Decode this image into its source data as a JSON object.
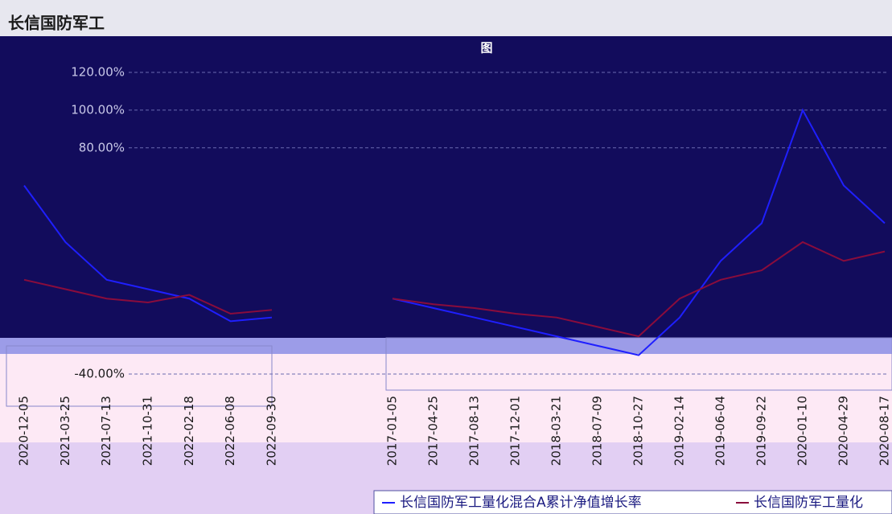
{
  "charts": [
    {
      "type": "line",
      "title": "长信国防军工",
      "subtitle": "图",
      "categories": [
        "2017-01-05",
        "2017-04-25",
        "2017-08-13",
        "2017-12-01",
        "2018-03-21",
        "2018-07-09",
        "2018-10-27",
        "2019-02-14",
        "2019-06-04",
        "2019-09-22",
        "2020-01-10",
        "2020-04-29",
        "2020-08-17"
      ],
      "ylim": [
        -40,
        120
      ],
      "yticks": [
        {
          "value": 120,
          "label": "120.00%"
        },
        {
          "value": 100,
          "label": "100.00%"
        },
        {
          "value": 80,
          "label": "80.00%"
        },
        {
          "value": -40,
          "label": "-40.00%"
        }
      ],
      "grid": true,
      "series": [
        {
          "name": "长信国防军工量化混合A累计净值增长率",
          "color": "#1f1fff",
          "values": [
            0,
            -5,
            -10,
            -15,
            -20,
            -25,
            -30,
            -10,
            20,
            40,
            100,
            60,
            40
          ]
        },
        {
          "name": "长信国防军工量化",
          "color": "#8a0c3c",
          "values": [
            0,
            -3,
            -5,
            -8,
            -10,
            -15,
            -20,
            0,
            10,
            15,
            30,
            20,
            25
          ]
        }
      ]
    },
    {
      "type": "line",
      "categories": [
        "2020-12-05",
        "2021-03-25",
        "2021-07-13",
        "2021-10-31",
        "2022-02-18",
        "2022-06-08",
        "2022-09-30"
      ],
      "ylim": [
        -40,
        120
      ],
      "series": [
        {
          "color": "#1f1fff",
          "values": [
            60,
            30,
            10,
            5,
            0,
            -12,
            -10
          ]
        },
        {
          "color": "#8a0c3c",
          "values": [
            10,
            5,
            0,
            -2,
            2,
            -8,
            -6
          ]
        }
      ]
    }
  ]
}
